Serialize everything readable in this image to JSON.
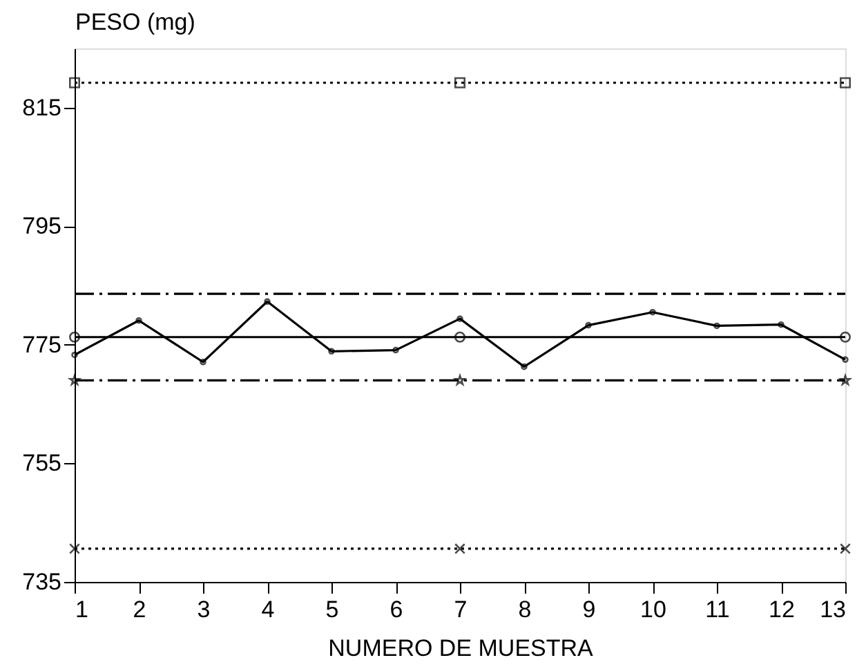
{
  "chart_data": {
    "type": "line",
    "ylabel": "PESO (mg)",
    "xlabel": "NUMERO DE MUESTRA",
    "x": [
      1,
      2,
      3,
      4,
      5,
      6,
      7,
      8,
      9,
      10,
      11,
      12,
      13
    ],
    "series": [
      {
        "color": "#000000",
        "marker": "circle",
        "line_style": "solid",
        "values": [
          773.3,
          779.1,
          772.1,
          782.3,
          773.9,
          774.1,
          779.4,
          771.3,
          778.3,
          780.5,
          778.2,
          778.4,
          772.5
        ]
      },
      {
        "color": "#000000",
        "marker": "square",
        "line_style": "dotted",
        "x": [
          1,
          7,
          13
        ],
        "values": [
          819.2,
          819.2,
          819.2
        ]
      },
      {
        "color": "#000000",
        "marker": "none",
        "line_style": "dashed",
        "x": [
          1,
          7,
          13
        ],
        "values": [
          783.6,
          783.6,
          783.6
        ]
      },
      {
        "color": "#000000",
        "marker": "circle",
        "line_style": "solid",
        "x": [
          1,
          7,
          13
        ],
        "values": [
          776.3,
          776.3,
          776.3
        ]
      },
      {
        "color": "#000000",
        "marker": "star",
        "line_style": "dashed",
        "x": [
          1,
          7,
          13
        ],
        "values": [
          769.0,
          769.0,
          769.0
        ]
      },
      {
        "color": "#000000",
        "marker": "cross",
        "line_style": "dotted",
        "x": [
          1,
          7,
          13
        ],
        "values": [
          740.6,
          740.6,
          740.6
        ]
      }
    ],
    "xlim": [
      1,
      13
    ],
    "xticks": [
      1,
      2,
      3,
      4,
      5,
      6,
      7,
      8,
      9,
      10,
      11,
      12,
      13
    ],
    "ylim": [
      735,
      825
    ],
    "yticks": [
      735,
      755,
      775,
      795,
      815
    ],
    "grid": false
  }
}
